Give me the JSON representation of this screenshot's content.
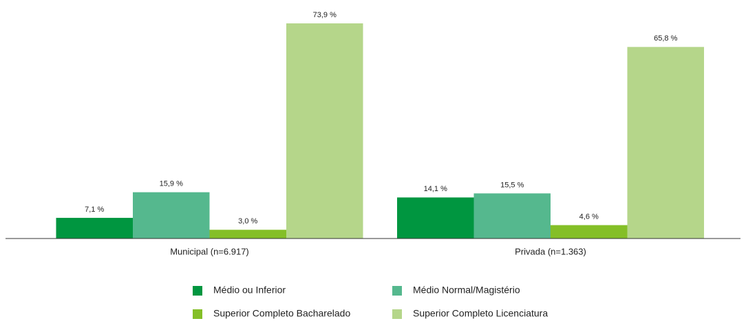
{
  "chart_data": {
    "type": "bar",
    "categories": [
      "Municipal (n=6.917)",
      "Privada (n=1.363)"
    ],
    "series": [
      {
        "name": "Médio ou Inferior",
        "color": "#009640",
        "values": [
          7.1,
          14.1
        ],
        "value_labels": [
          "7,1 %",
          "14,1 %"
        ]
      },
      {
        "name": "Médio Normal/Magistério",
        "color": "#55b88e",
        "values": [
          15.9,
          15.5
        ],
        "value_labels": [
          "15,9 %",
          "15,5 %"
        ]
      },
      {
        "name": "Superior Completo Bacharelado",
        "color": "#84bf27",
        "values": [
          3.0,
          4.6
        ],
        "value_labels": [
          "3,0 %",
          "4,6 %"
        ]
      },
      {
        "name": "Superior Completo Licenciatura",
        "color": "#b5d68a",
        "values": [
          73.9,
          65.8
        ],
        "value_labels": [
          "73,9 %",
          "65,8 %"
        ]
      }
    ]
  }
}
